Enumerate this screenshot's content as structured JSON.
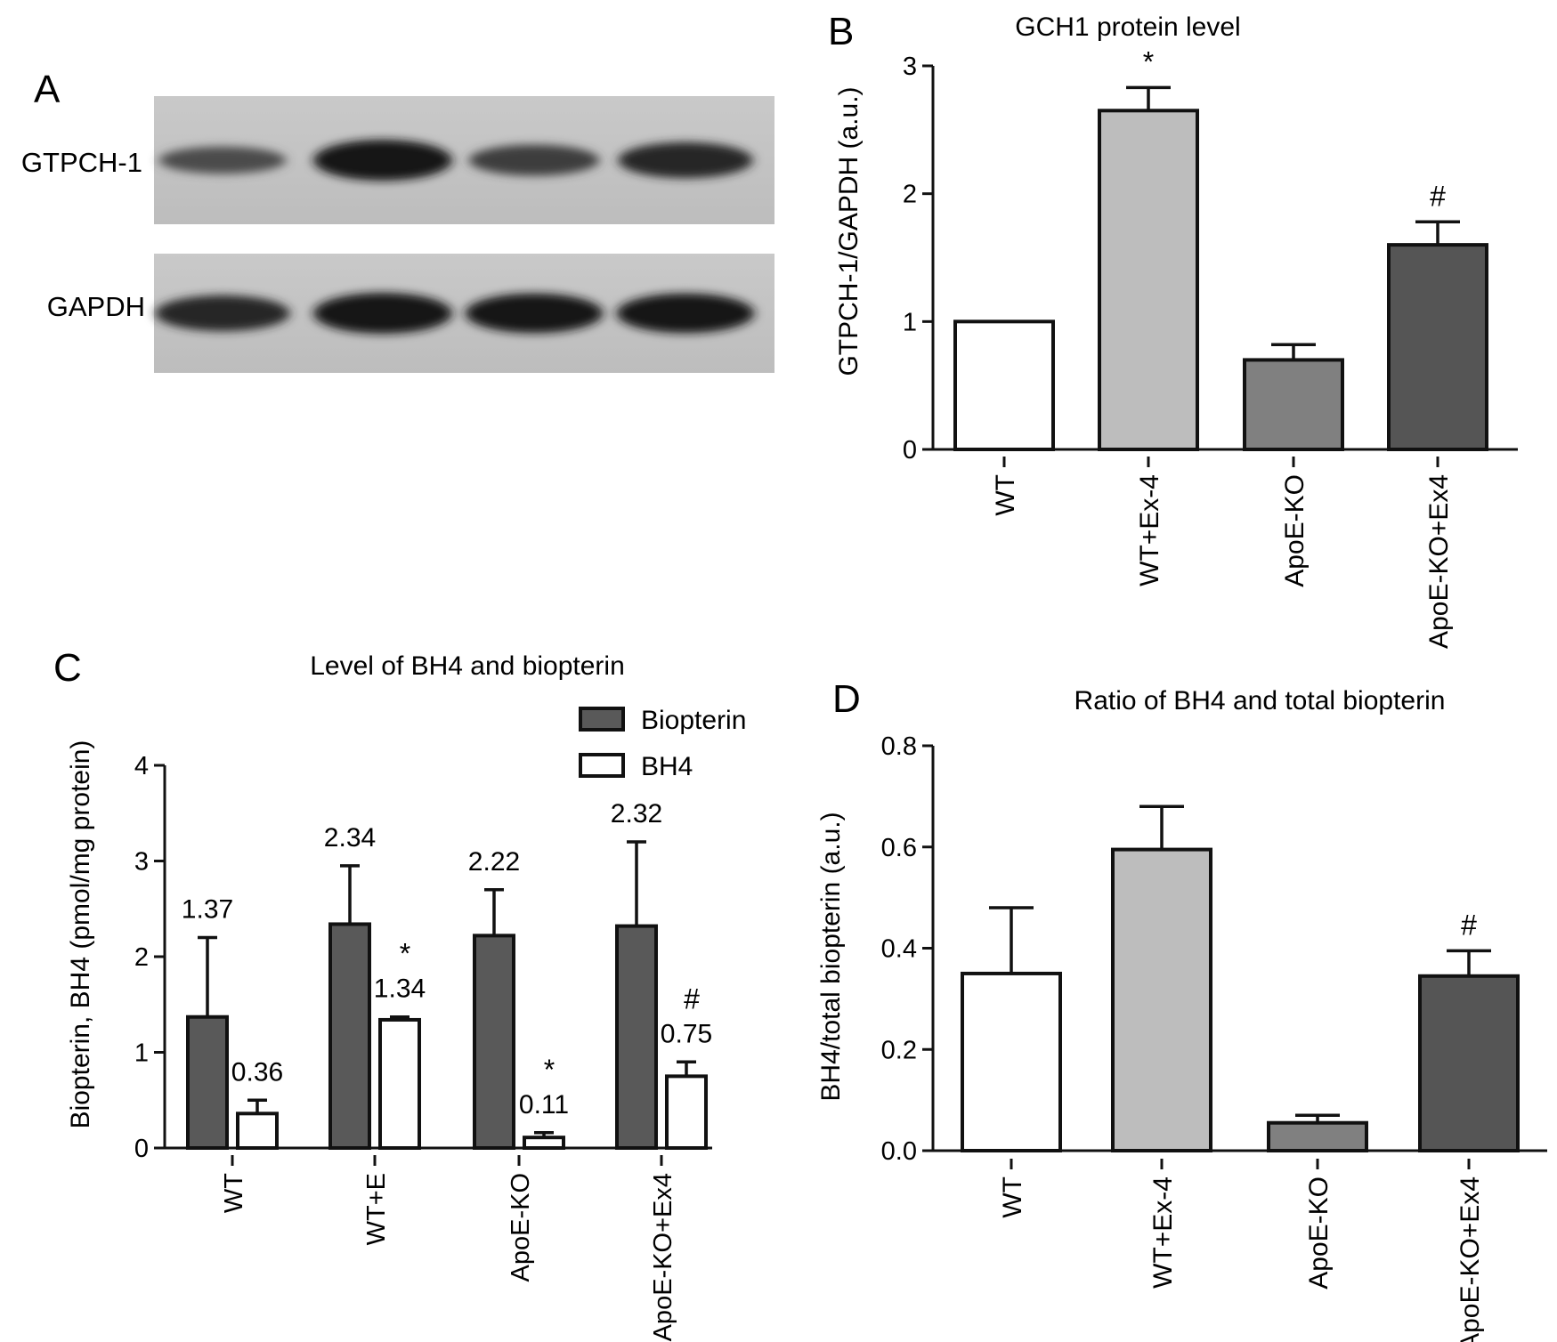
{
  "panel_letters": {
    "a": "A",
    "b": "B",
    "c": "C",
    "d": "D"
  },
  "blot": {
    "rows": [
      {
        "label": "GTPCH-1",
        "band_intensity": [
          0.45,
          1.0,
          0.6,
          0.8
        ]
      },
      {
        "label": "GAPDH",
        "band_intensity": [
          0.8,
          1.0,
          0.95,
          0.95
        ]
      }
    ]
  },
  "colors": {
    "wt": "#ffffff",
    "wt_ex4": "#bdbdbd",
    "apoe_ko": "#808080",
    "apoe_ko_ex4": "#555555",
    "biopterin": "#595959",
    "bh4": "#ffffff",
    "stroke": "#111111"
  },
  "chart_data": [
    {
      "panel": "B",
      "type": "bar",
      "title": "GCH1 protein level",
      "xlabel": "",
      "ylabel": "GTPCH-1/GAPDH (a.u.)",
      "categories": [
        "WT",
        "WT+Ex-4",
        "ApoE-KO",
        "ApoE-KO+Ex4"
      ],
      "values": [
        1.0,
        2.65,
        0.7,
        1.6
      ],
      "errors": [
        0,
        0.18,
        0.12,
        0.18
      ],
      "annotations": [
        "",
        "*",
        "",
        "#"
      ],
      "ylim": [
        0,
        3
      ],
      "yticks": [
        "0",
        "1",
        "2",
        "3"
      ],
      "grid": false
    },
    {
      "panel": "C",
      "type": "bar",
      "title": "Level of BH4 and biopterin",
      "xlabel": "",
      "ylabel": "Biopterin, BH4 (pmol/mg protein)",
      "categories": [
        "WT",
        "WT+E",
        "ApoE-KO",
        "ApoE-KO+Ex4"
      ],
      "series": [
        {
          "name": "Biopterin",
          "values": [
            1.37,
            2.34,
            2.22,
            2.32
          ],
          "errors": [
            0.83,
            0.61,
            0.48,
            0.88
          ],
          "labels": [
            "1.37",
            "2.34",
            "2.22",
            "2.32"
          ],
          "annotations": [
            "",
            "",
            "",
            ""
          ]
        },
        {
          "name": "BH4",
          "values": [
            0.36,
            1.34,
            0.11,
            0.75
          ],
          "errors": [
            0.14,
            0.03,
            0.05,
            0.15
          ],
          "labels": [
            "0.36",
            "1.34",
            "0.11",
            "0.75"
          ],
          "annotations": [
            "",
            "*",
            "*",
            "#"
          ]
        }
      ],
      "ylim": [
        0,
        4
      ],
      "yticks": [
        "0",
        "1",
        "2",
        "3",
        "4"
      ],
      "legend": "top-right",
      "grid": false
    },
    {
      "panel": "D",
      "type": "bar",
      "title": "Ratio of BH4 and total biopterin",
      "xlabel": "",
      "ylabel": "BH4/total biopterin (a.u.)",
      "categories": [
        "WT",
        "WT+Ex-4",
        "ApoE-KO",
        "ApoE-KO+Ex4"
      ],
      "values": [
        0.35,
        0.595,
        0.055,
        0.345
      ],
      "errors": [
        0.13,
        0.085,
        0.015,
        0.05
      ],
      "annotations": [
        "",
        "",
        "",
        "#"
      ],
      "ylim": [
        0,
        0.8
      ],
      "yticks": [
        "0.0",
        "0.2",
        "0.4",
        "0.6",
        "0.8"
      ],
      "grid": false
    }
  ]
}
